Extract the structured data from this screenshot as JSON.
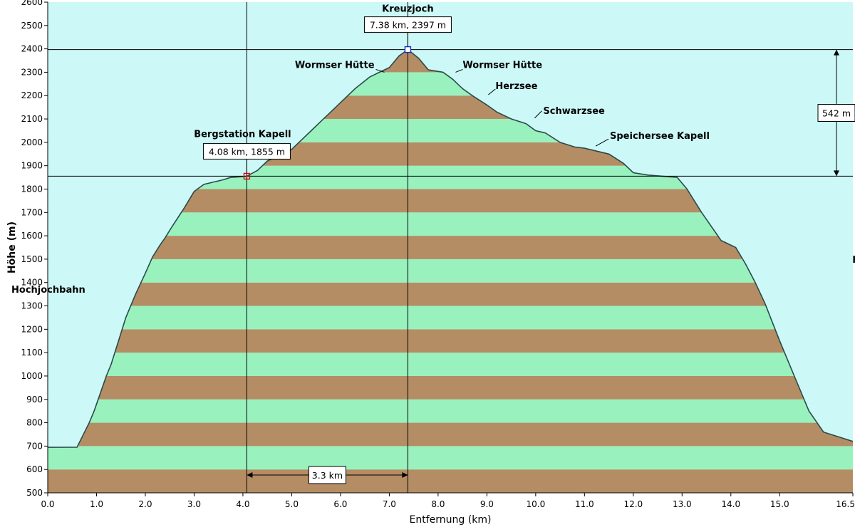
{
  "colors": {
    "sky": "#cdf8f8",
    "band_green": "#99f2be",
    "band_brown": "#b58d64",
    "outline": "#2a4a4a",
    "marker_start": "#d01010",
    "marker_peak": "#1030c0"
  },
  "chart_data": {
    "type": "area",
    "title": "",
    "xlabel": "Entfernung  (km)",
    "ylabel": "Höhe (m)",
    "xlim": [
      0.0,
      16.5
    ],
    "ylim": [
      500,
      2600
    ],
    "x_ticks": [
      "0.0",
      "1.0",
      "2.0",
      "3.0",
      "4.0",
      "5.0",
      "6.0",
      "7.0",
      "8.0",
      "9.0",
      "10.0",
      "11.0",
      "12.0",
      "13.0",
      "14.0",
      "15.0",
      "16.5"
    ],
    "x_tick_values": [
      0,
      1,
      2,
      3,
      4,
      5,
      6,
      7,
      8,
      9,
      10,
      11,
      12,
      13,
      14,
      15,
      16.5
    ],
    "y_ticks": [
      "500",
      "600",
      "700",
      "800",
      "900",
      "1000",
      "1100",
      "1200",
      "1300",
      "1400",
      "1500",
      "1600",
      "1700",
      "1800",
      "1900",
      "2000",
      "2100",
      "2200",
      "2300",
      "2400",
      "2500",
      "2600"
    ],
    "y_tick_values": [
      500,
      600,
      700,
      800,
      900,
      1000,
      1100,
      1200,
      1300,
      1400,
      1500,
      1600,
      1700,
      1800,
      1900,
      2000,
      2100,
      2200,
      2300,
      2400,
      2500,
      2600
    ],
    "band_step": 100,
    "grid": false,
    "x": [
      0,
      0.6,
      0.85,
      0.95,
      1.2,
      1.3,
      1.45,
      1.6,
      1.8,
      2.0,
      2.15,
      2.3,
      2.4,
      2.55,
      2.8,
      3.0,
      3.2,
      3.4,
      3.6,
      3.75,
      3.9,
      4.08,
      4.3,
      4.5,
      4.8,
      5.0,
      5.2,
      5.4,
      5.6,
      5.8,
      6.0,
      6.3,
      6.6,
      6.8,
      7.0,
      7.2,
      7.38,
      7.6,
      7.8,
      8.1,
      8.3,
      8.5,
      8.7,
      9.0,
      9.2,
      9.5,
      9.8,
      10.0,
      10.2,
      10.5,
      10.8,
      11.0,
      11.5,
      11.8,
      12.0,
      12.3,
      12.6,
      12.9,
      13.1,
      13.4,
      13.8,
      14.1,
      14.3,
      14.5,
      14.7,
      15.0,
      15.3,
      15.6,
      15.9,
      16.2,
      16.5
    ],
    "y": [
      695,
      695,
      800,
      850,
      1000,
      1050,
      1150,
      1250,
      1350,
      1440,
      1510,
      1560,
      1590,
      1640,
      1720,
      1790,
      1820,
      1830,
      1840,
      1850,
      1852,
      1855,
      1880,
      1920,
      1950,
      1970,
      2010,
      2050,
      2090,
      2130,
      2170,
      2230,
      2280,
      2300,
      2320,
      2370,
      2397,
      2360,
      2310,
      2300,
      2270,
      2230,
      2200,
      2160,
      2130,
      2100,
      2080,
      2050,
      2040,
      2000,
      1980,
      1975,
      1950,
      1910,
      1870,
      1860,
      1855,
      1850,
      1800,
      1700,
      1580,
      1550,
      1480,
      1400,
      1310,
      1150,
      1000,
      850,
      760,
      740,
      720
    ],
    "annotations": [
      {
        "text": "Kreuzjoch",
        "x": 7.38,
        "y": 2397
      },
      {
        "text": "Wormser Hütte",
        "x": 6.9,
        "y": 2300
      },
      {
        "text": "Wormser Hütte",
        "x": 8.3,
        "y": 2300
      },
      {
        "text": "Herzsee",
        "x": 9.0,
        "y": 2210
      },
      {
        "text": "Schwarzsee",
        "x": 9.95,
        "y": 2110
      },
      {
        "text": "Speichersee Kapell",
        "x": 11.2,
        "y": 1990
      },
      {
        "text": "Bergstation Kapell",
        "x": 4.08,
        "y": 1855
      },
      {
        "text": "Hochjochbahn",
        "x": 1.3,
        "y": 1350
      },
      {
        "text": "Hochjochbahn",
        "x": 15.0,
        "y": 1460
      }
    ],
    "markers": [
      {
        "label": "4.08 km, 1855 m",
        "x": 4.08,
        "y": 1855
      },
      {
        "label": "7.38 km, 2397 m",
        "x": 7.38,
        "y": 2397
      }
    ],
    "measure_horizontal": {
      "label": "3.3 km",
      "from_x": 4.08,
      "to_x": 7.38
    },
    "measure_vertical": {
      "label": "542 m",
      "from_y": 1855,
      "to_y": 2397
    }
  }
}
